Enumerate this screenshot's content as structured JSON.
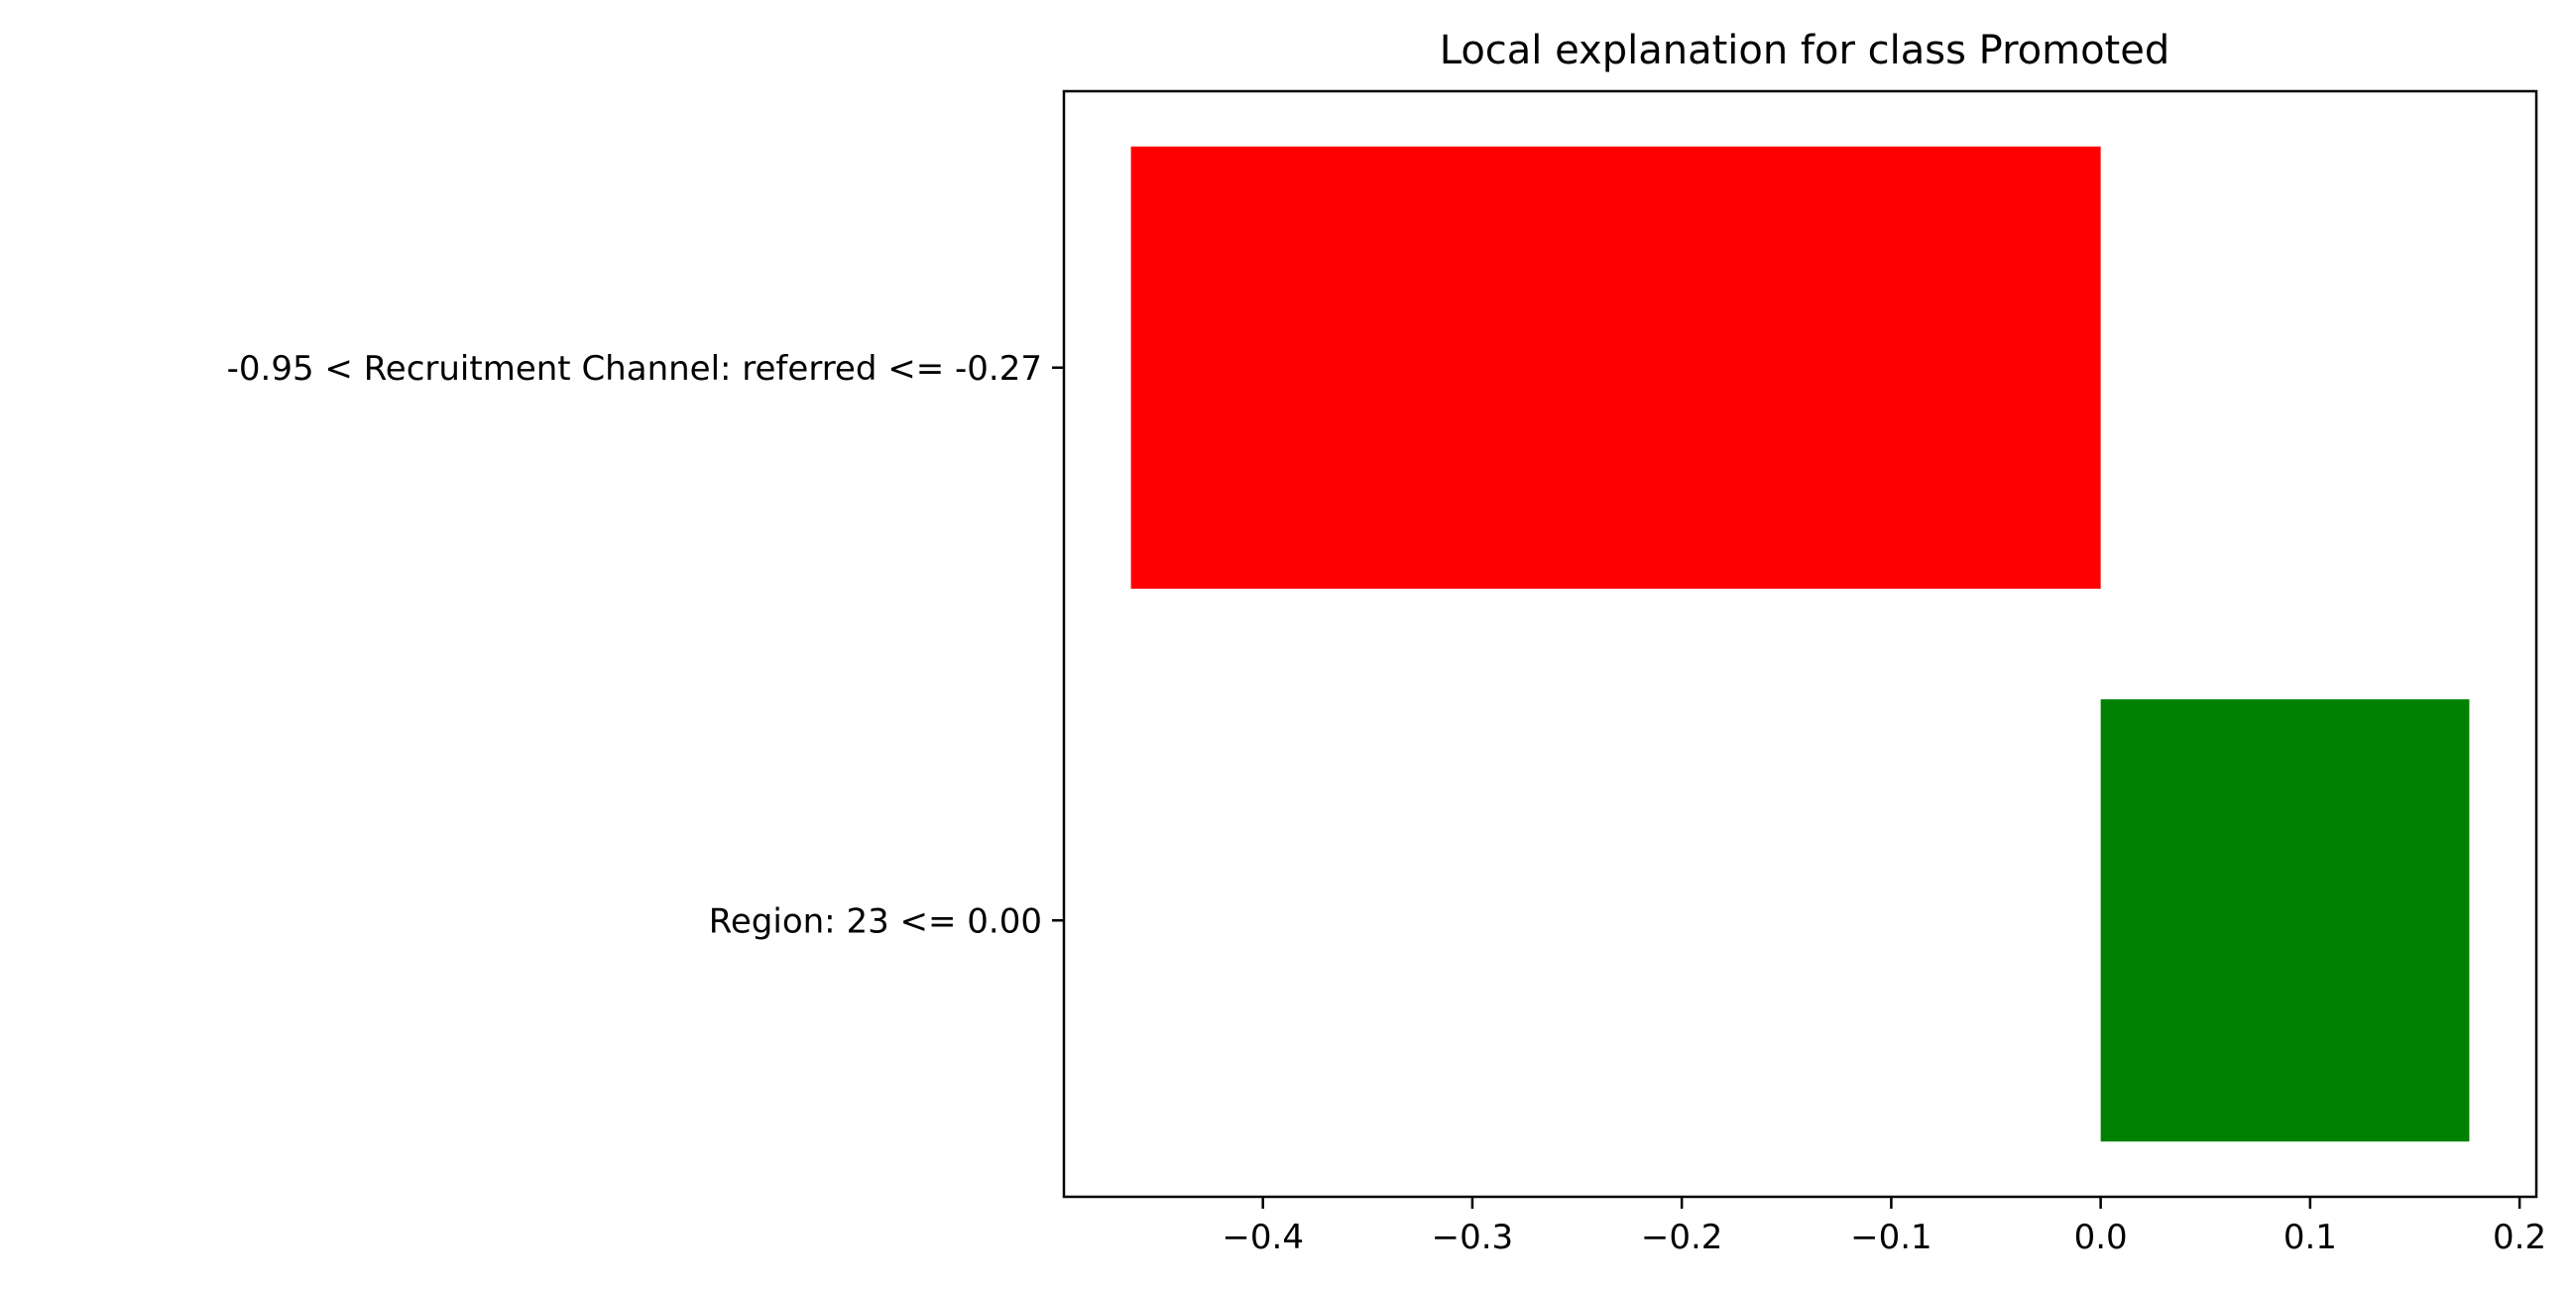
{
  "chart_data": {
    "type": "bar",
    "orientation": "horizontal",
    "title": "Local explanation for class Promoted",
    "xlabel": "",
    "ylabel": "",
    "categories": [
      "-0.95 < Recruitment Channel: referred <= -0.27",
      "Region: 23 <= 0.00"
    ],
    "values": [
      -0.463,
      0.176
    ],
    "bar_colors": [
      "#ff0000",
      "#008000"
    ],
    "xlim": [
      -0.495,
      0.208
    ],
    "xticks": [
      -0.4,
      -0.3,
      -0.2,
      -0.1,
      0.0,
      0.1,
      0.2
    ],
    "xtick_labels": [
      "−0.4",
      "−0.3",
      "−0.2",
      "−0.1",
      "0.0",
      "0.1",
      "0.2"
    ],
    "grid": false,
    "legend": "none"
  }
}
